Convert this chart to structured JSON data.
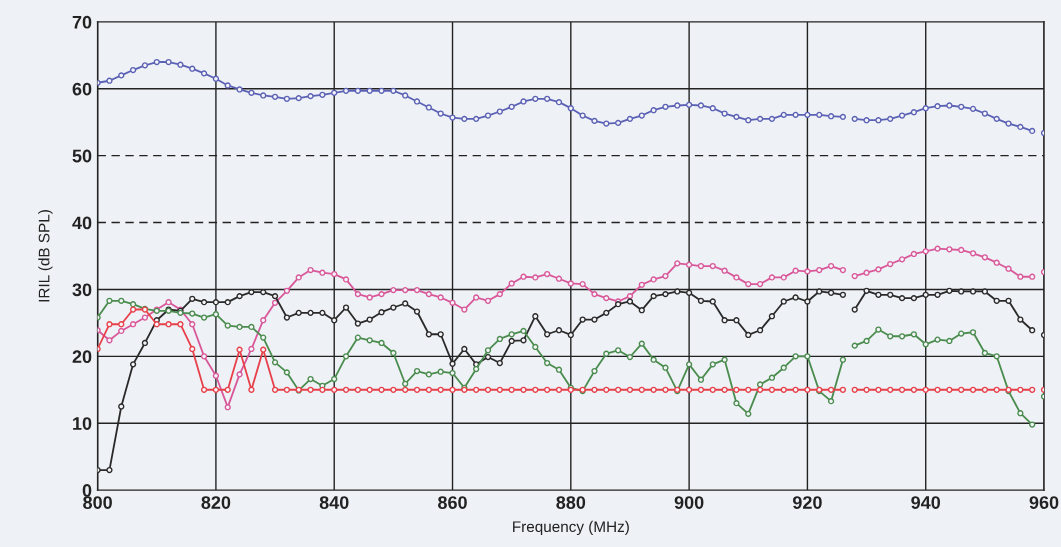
{
  "chart_data": {
    "type": "line",
    "xlabel": "Frequency (MHz)",
    "ylabel": "IRIL (dB SPL)",
    "x": [
      800,
      802,
      804,
      806,
      808,
      810,
      812,
      814,
      816,
      818,
      820,
      822,
      824,
      826,
      828,
      830,
      832,
      834,
      836,
      838,
      840,
      842,
      844,
      846,
      848,
      850,
      852,
      854,
      856,
      858,
      860,
      862,
      864,
      866,
      868,
      870,
      872,
      874,
      876,
      878,
      880,
      882,
      884,
      886,
      888,
      890,
      892,
      894,
      896,
      898,
      900,
      902,
      904,
      906,
      908,
      910,
      912,
      914,
      916,
      918,
      920,
      922,
      924,
      926,
      927,
      928,
      930,
      932,
      934,
      936,
      938,
      940,
      942,
      944,
      946,
      948,
      950,
      952,
      954,
      956,
      958,
      959,
      960
    ],
    "series": [
      {
        "color": "#5b62b5",
        "values": [
          60.9,
          61.2,
          62,
          62.8,
          63.5,
          64,
          64,
          63.6,
          63,
          62.3,
          61.5,
          60.5,
          59.9,
          59.4,
          59,
          58.8,
          58.5,
          58.6,
          58.9,
          59.1,
          59.4,
          59.7,
          59.7,
          59.7,
          59.7,
          59.7,
          59,
          58.1,
          57.2,
          56.3,
          55.7,
          55.5,
          55.5,
          56,
          56.6,
          57.3,
          58.1,
          58.5,
          58.5,
          58,
          57.1,
          56,
          55.2,
          54.8,
          54.9,
          55.5,
          56,
          56.8,
          57.3,
          57.5,
          57.6,
          57.5,
          57.1,
          56.3,
          55.8,
          55.3,
          55.5,
          55.5,
          56.1,
          56.1,
          56.1,
          56.1,
          55.9,
          55.8,
          null,
          55.5,
          55.3,
          55.3,
          55.5,
          56,
          56.5,
          57.1,
          57.4,
          57.5,
          57.3,
          57,
          56.3,
          55.5,
          54.8,
          54.3,
          53.7,
          null,
          53.4
        ]
      },
      {
        "color": "#d9589a",
        "values": [
          23.9,
          22.4,
          23.8,
          24.8,
          25.8,
          27,
          28.1,
          27,
          24.8,
          20,
          17.1,
          12.4,
          17.3,
          21.1,
          25.4,
          28,
          29.8,
          31.8,
          32.9,
          32.5,
          32.3,
          31.5,
          29.3,
          28.8,
          29.3,
          29.9,
          29.9,
          29.9,
          29.3,
          28.8,
          28,
          27,
          28.8,
          28.3,
          29.3,
          30.9,
          31.9,
          31.8,
          32.3,
          31.6,
          30.9,
          30.8,
          29.3,
          28.7,
          28.2,
          29,
          30.7,
          31.5,
          32,
          33.9,
          33.7,
          33.5,
          33.5,
          32.8,
          31.8,
          30.8,
          30.8,
          31.8,
          31.8,
          32.8,
          32.7,
          32.9,
          33.5,
          32.9,
          null,
          32,
          32.5,
          33,
          33.8,
          34.5,
          35.3,
          35.7,
          36.1,
          36,
          35.9,
          35.4,
          34.8,
          34,
          33.1,
          31.9,
          31.9,
          null,
          32.6
        ]
      },
      {
        "color": "#2a2a2a",
        "values": [
          3,
          3,
          12.5,
          18.8,
          22,
          25.4,
          27,
          26.8,
          28.6,
          28.1,
          28.1,
          28.1,
          29,
          29.6,
          29.6,
          29,
          25.8,
          26.5,
          26.5,
          26.5,
          25.4,
          27.3,
          24.9,
          25.5,
          26.6,
          27.3,
          27.9,
          26.7,
          23.3,
          23.3,
          18.9,
          21.1,
          18.8,
          19.9,
          19,
          22.3,
          22.4,
          26,
          23.3,
          23.9,
          23.2,
          25.5,
          25.5,
          26.5,
          27.8,
          28.2,
          26.9,
          29,
          29.3,
          29.7,
          29.5,
          28.3,
          28.2,
          25.4,
          25.4,
          23.2,
          23.9,
          26,
          28.2,
          28.8,
          28.2,
          29.7,
          29.5,
          29.2,
          null,
          27,
          29.8,
          29.2,
          29.2,
          28.7,
          28.7,
          29.2,
          29.2,
          29.8,
          29.7,
          29.7,
          29.7,
          28.3,
          28.3,
          25.5,
          23.9,
          null,
          23.2
        ]
      },
      {
        "color": "#4a8c4e",
        "values": [
          25.8,
          28.3,
          28.3,
          27.8,
          27.1,
          26.8,
          26.8,
          26.5,
          26.4,
          25.8,
          26.3,
          24.6,
          24.4,
          24.4,
          22.8,
          19.1,
          17.6,
          14.9,
          16.6,
          15.6,
          16.6,
          20,
          22.8,
          22.4,
          22,
          20.5,
          15.9,
          17.8,
          17.3,
          17.7,
          17.5,
          15.3,
          18.1,
          20.9,
          22.6,
          23.3,
          23.8,
          21.4,
          19,
          18,
          15.3,
          14.8,
          17.8,
          20.4,
          20.9,
          19.9,
          21.9,
          19.5,
          18.3,
          14.8,
          18.8,
          16.5,
          18.8,
          19.5,
          13,
          11.4,
          15.8,
          16.8,
          18.3,
          20,
          20,
          14.8,
          13.3,
          19.5,
          null,
          21.6,
          22.3,
          24,
          23,
          23,
          23.3,
          21.8,
          22.5,
          22.3,
          23.4,
          23.6,
          20.5,
          20,
          14.8,
          11.5,
          9.8,
          null,
          14
        ]
      },
      {
        "color": "#e8404a",
        "values": [
          21.1,
          24.8,
          24.8,
          27,
          27,
          24.8,
          24.8,
          24.8,
          21.1,
          15,
          15,
          15,
          21,
          15,
          21,
          15,
          15,
          15,
          15,
          15,
          15,
          15,
          15,
          15,
          15,
          15,
          15,
          15,
          15,
          15,
          15,
          15,
          15,
          15,
          15,
          15,
          15,
          15,
          15,
          15,
          15,
          15,
          15,
          15,
          15,
          15,
          15,
          15,
          15,
          15,
          15,
          15,
          15,
          15,
          15,
          15,
          15,
          15,
          15,
          15,
          15,
          15,
          15,
          15,
          null,
          15,
          15,
          15,
          15,
          15,
          15,
          15,
          15,
          15,
          15,
          15,
          15,
          15,
          15,
          15,
          15,
          null,
          15
        ]
      }
    ],
    "xlim": [
      800,
      960
    ],
    "xticks": [
      800,
      820,
      840,
      860,
      880,
      900,
      920,
      940,
      960
    ],
    "ylim": [
      0,
      70
    ],
    "yticks": [
      0,
      10,
      20,
      30,
      40,
      50,
      60,
      70
    ],
    "grid": "x",
    "marker": "circle",
    "line_style": "solid",
    "ref_lines": [
      {
        "axis": "y",
        "value": 10,
        "color": "#222222",
        "line_style": "solid"
      },
      {
        "axis": "y",
        "value": 20,
        "color": "#222222",
        "line_style": "solid"
      },
      {
        "axis": "y",
        "value": 30,
        "color": "#222222",
        "line_style": "solid"
      },
      {
        "axis": "y",
        "value": 40,
        "color": "#222222",
        "line_style": "dashed"
      },
      {
        "axis": "y",
        "value": 50,
        "color": "#222222",
        "line_style": "dashed"
      },
      {
        "axis": "y",
        "value": 60,
        "color": "#222222",
        "line_style": "solid"
      }
    ]
  }
}
